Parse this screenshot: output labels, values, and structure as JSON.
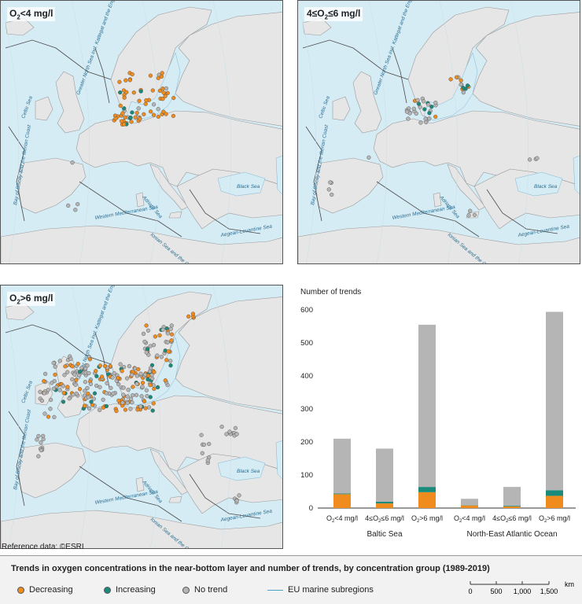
{
  "maps": [
    {
      "title_main": "O",
      "title_sub": "2",
      "title_rest": "<4 mg/l"
    },
    {
      "title_main": "4≤O",
      "title_sub": "2",
      "title_rest": "≤6 mg/l"
    },
    {
      "title_main": "O",
      "title_sub": "2",
      "title_rest": ">6 mg/l"
    }
  ],
  "sea_labels": [
    "Celtic Sea",
    "Greater North Sea incl. Kattegat and the English Channel",
    "Bay of Biscay and the Iberian Coast",
    "Black Sea",
    "Adriatic Sea",
    "Western Mediterranean Sea",
    "Ionian Sea and the Central Mediterranean Sea",
    "Aegean-Levantine Sea"
  ],
  "colors": {
    "decreasing": "#f08c1e",
    "increasing": "#1a8a7a",
    "no_trend": "#b5b5b5",
    "sea": "#d6ecf5",
    "land": "#e6e6e6",
    "subregion": "#49a3c6"
  },
  "reference": "Reference data: ©ESRI",
  "legend": {
    "title": "Trends in oxygen concentrations in the near-bottom layer and number of trends, by concentration group (1989-2019)",
    "items": [
      "Decreasing",
      "Increasing",
      "No trend",
      "EU marine subregions"
    ]
  },
  "scale": {
    "ticks": [
      "0",
      "500",
      "1,000",
      "1,500"
    ],
    "unit": "km"
  },
  "chart_data": {
    "type": "bar",
    "stacked": true,
    "ylabel": "Number of trends",
    "ylim": [
      0,
      600
    ],
    "yticks": [
      "0",
      "100",
      "200",
      "300",
      "400",
      "500",
      "600"
    ],
    "grid": false,
    "groups": [
      "Baltic Sea",
      "North-East Atlantic Ocean"
    ],
    "categories": [
      "O2<4 mg/l",
      "4≤O2≤6 mg/l",
      "O2>6 mg/l",
      "O2<4 mg/l",
      "4≤O2≤6 mg/l",
      "O2>6 mg/l"
    ],
    "category_labels": [
      {
        "a": "O",
        "s": "2",
        "b": "<4 mg/l"
      },
      {
        "a": "4≤O",
        "s": "2",
        "b": "≤6 mg/l"
      },
      {
        "a": "O",
        "s": "2",
        "b": ">6 mg/l"
      },
      {
        "a": "O",
        "s": "2",
        "b": "<4 mg/l"
      },
      {
        "a": "4≤O",
        "s": "2",
        "b": "≤6 mg/l"
      },
      {
        "a": "O",
        "s": "2",
        "b": ">6 mg/l"
      }
    ],
    "series": [
      {
        "name": "Decreasing",
        "color": "#f08c1e",
        "values": [
          42,
          14,
          48,
          8,
          5,
          37
        ]
      },
      {
        "name": "Increasing",
        "color": "#1a8a7a",
        "values": [
          2,
          5,
          16,
          1,
          2,
          17
        ]
      },
      {
        "name": "No trend",
        "color": "#b5b5b5",
        "values": [
          166,
          161,
          491,
          19,
          57,
          540
        ]
      }
    ]
  }
}
